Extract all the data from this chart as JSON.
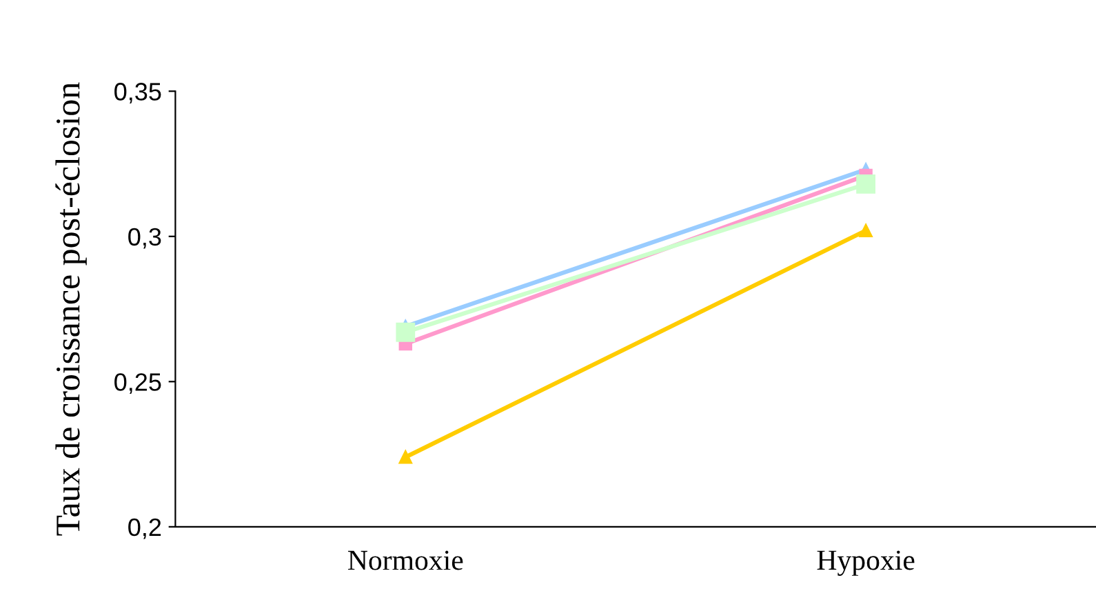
{
  "chart_data": {
    "type": "line",
    "ylabel": "Taux de croissance post-éclosion",
    "categories": [
      "Normoxie",
      "Hypoxie"
    ],
    "series": [
      {
        "color": "#99ccff",
        "marker": "triangle",
        "values": [
          0.269,
          0.323
        ]
      },
      {
        "color": "#ff99cc",
        "marker": "square",
        "values": [
          0.263,
          0.321
        ]
      },
      {
        "color": "#ccffcc",
        "marker": "square",
        "values": [
          0.267,
          0.318
        ]
      },
      {
        "color": "#ffcc00",
        "marker": "triangle",
        "values": [
          0.224,
          0.302
        ]
      }
    ],
    "ylim": [
      0.2,
      0.35
    ],
    "yticks": [
      {
        "value": 0.2,
        "label": "0,2"
      },
      {
        "value": 0.25,
        "label": "0,25"
      },
      {
        "value": 0.3,
        "label": "0,3"
      },
      {
        "value": 0.35,
        "label": "0,35"
      }
    ],
    "grid": false,
    "legend": false
  }
}
